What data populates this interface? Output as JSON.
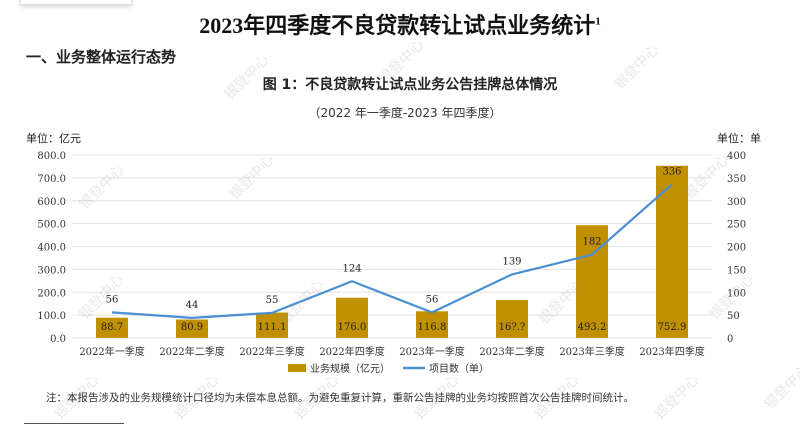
{
  "page": {
    "title": "2023年四季度不良贷款转让试点业务统计",
    "title_footnote": "1",
    "section_heading": "一、业务整体运行态势",
    "note": "注：本报告涉及的业务规模统计口径均为未偿本息总额。为避免重复计算，重新公告挂牌的业务均按照首次公告挂牌时间统计。",
    "watermark": "银登中心"
  },
  "chart_data": {
    "type": "bar+line",
    "title": "图 1：不良贷款转让试点业务公告挂牌总体情况",
    "subtitle": "（2022 年一季度-2023 年四季度）",
    "left_unit": "单位：亿元",
    "right_unit": "单位：单",
    "categories": [
      "2022年一季度",
      "2022年二季度",
      "2022年三季度",
      "2022年四季度",
      "2023年一季度",
      "2023年二季度",
      "2023年三季度",
      "2023年四季度"
    ],
    "series": [
      {
        "name": "业务规模（亿元）",
        "type": "bar",
        "axis": "left",
        "color": "#C09000",
        "values": [
          88.7,
          80.9,
          111.1,
          176.0,
          116.8,
          166.0,
          493.2,
          752.9
        ],
        "labels": [
          "88.7",
          "80.9",
          "111.1",
          "176.0",
          "116.8",
          "16?.?",
          "493.2",
          "752.9"
        ]
      },
      {
        "name": "项目数（单）",
        "type": "line",
        "axis": "right",
        "color": "#4A8FD4",
        "values": [
          56,
          44,
          55,
          124,
          56,
          139,
          182,
          336
        ]
      }
    ],
    "left_axis": {
      "min": 0,
      "max": 800,
      "step": 100,
      "ticks": [
        "0.0",
        "100.0",
        "200.0",
        "300.0",
        "400.0",
        "500.0",
        "600.0",
        "700.0",
        "800.0"
      ]
    },
    "right_axis": {
      "min": 0,
      "max": 400,
      "step": 50,
      "ticks": [
        "0",
        "50",
        "100",
        "150",
        "200",
        "250",
        "300",
        "350",
        "400"
      ]
    },
    "grid": true,
    "legend_position": "bottom"
  }
}
